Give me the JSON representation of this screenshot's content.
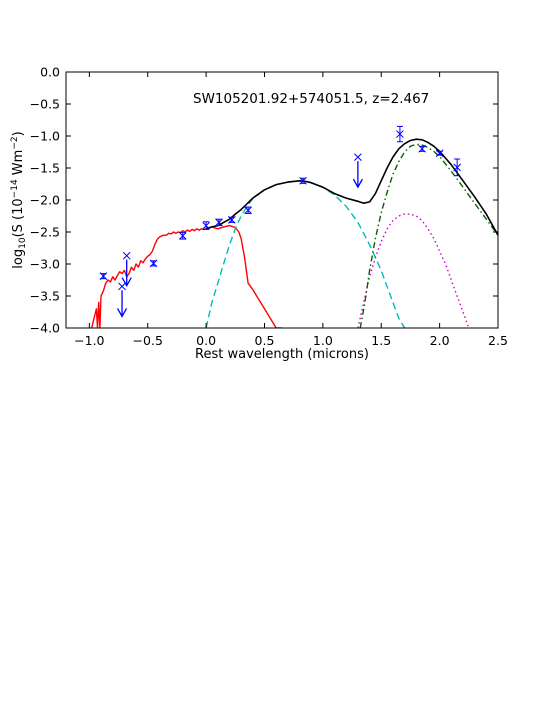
{
  "chart_data": {
    "type": "line",
    "annotation": "SW105201.92+574051.5, z=2.467",
    "xlabel": "Rest wavelength (microns)",
    "ylabel_parts": {
      "pre": "log",
      "sub": "10",
      "mid": "(S (10",
      "sup1": "−14",
      "mid2": " Wm",
      "sup2": "−2",
      "post": ")"
    },
    "xlim": [
      -1.2,
      2.5
    ],
    "ylim": [
      -4.0,
      0.0
    ],
    "x_ticks": [
      "−1.0",
      "−0.5",
      "0.0",
      "0.5",
      "1.0",
      "1.5",
      "2.0",
      "2.5"
    ],
    "x_tick_values": [
      -1.0,
      -0.5,
      0.0,
      0.5,
      1.0,
      1.5,
      2.0,
      2.5
    ],
    "y_ticks": [
      "0.0",
      "−0.5",
      "−1.0",
      "−1.5",
      "−2.0",
      "−2.5",
      "−3.0",
      "−3.5",
      "−4.0"
    ],
    "y_tick_values": [
      0.0,
      -0.5,
      -1.0,
      -1.5,
      -2.0,
      -2.5,
      -3.0,
      -3.5,
      -4.0
    ],
    "colors": {
      "stellar": "#ff0000",
      "cirrus": "#00bbbb",
      "starburst": "#cc00cc",
      "agn_dust": "#006400",
      "total": "#000000",
      "points": "#0000ff"
    },
    "series": [
      {
        "key": "stellar",
        "style": "solid",
        "x": [
          -0.98,
          -0.96,
          -0.94,
          -0.93,
          -0.92,
          -0.91,
          -0.9,
          -0.88,
          -0.86,
          -0.84,
          -0.82,
          -0.8,
          -0.78,
          -0.76,
          -0.74,
          -0.72,
          -0.7,
          -0.68,
          -0.66,
          -0.64,
          -0.62,
          -0.6,
          -0.58,
          -0.56,
          -0.54,
          -0.52,
          -0.5,
          -0.48,
          -0.46,
          -0.44,
          -0.42,
          -0.4,
          -0.38,
          -0.36,
          -0.34,
          -0.32,
          -0.3,
          -0.28,
          -0.26,
          -0.24,
          -0.22,
          -0.2,
          -0.18,
          -0.16,
          -0.14,
          -0.12,
          -0.1,
          -0.08,
          -0.06,
          -0.04,
          -0.02,
          0.0,
          0.05,
          0.1,
          0.15,
          0.2,
          0.25,
          0.28,
          0.3,
          0.33,
          0.36,
          0.4,
          0.45,
          0.5,
          0.55,
          0.6,
          0.65
        ],
        "y": [
          -4.0,
          -3.85,
          -3.7,
          -4.0,
          -3.6,
          -4.0,
          -3.5,
          -3.42,
          -3.3,
          -3.25,
          -3.28,
          -3.2,
          -3.25,
          -3.18,
          -3.12,
          -3.15,
          -3.1,
          -3.2,
          -3.15,
          -3.05,
          -3.1,
          -3.0,
          -3.05,
          -2.95,
          -2.98,
          -2.92,
          -2.88,
          -2.85,
          -2.8,
          -2.7,
          -2.62,
          -2.58,
          -2.56,
          -2.55,
          -2.55,
          -2.52,
          -2.53,
          -2.5,
          -2.52,
          -2.5,
          -2.51,
          -2.48,
          -2.5,
          -2.47,
          -2.49,
          -2.46,
          -2.48,
          -2.45,
          -2.47,
          -2.45,
          -2.46,
          -2.45,
          -2.42,
          -2.45,
          -2.42,
          -2.4,
          -2.43,
          -2.5,
          -2.6,
          -2.9,
          -3.3,
          -3.4,
          -3.55,
          -3.7,
          -3.85,
          -4.0,
          -4.0
        ]
      },
      {
        "key": "cirrus",
        "style": "dashed",
        "x": [
          0.0,
          0.05,
          0.1,
          0.15,
          0.2,
          0.25,
          0.3,
          0.35,
          0.4,
          0.5,
          0.6,
          0.7,
          0.8,
          0.85,
          0.9,
          1.0,
          1.1,
          1.2,
          1.3,
          1.4,
          1.5,
          1.6,
          1.65,
          1.7
        ],
        "y": [
          -4.0,
          -3.6,
          -3.3,
          -3.0,
          -2.7,
          -2.45,
          -2.25,
          -2.1,
          -1.98,
          -1.84,
          -1.76,
          -1.72,
          -1.7,
          -1.71,
          -1.73,
          -1.8,
          -1.92,
          -2.1,
          -2.35,
          -2.7,
          -3.1,
          -3.6,
          -3.85,
          -4.0
        ]
      },
      {
        "key": "starburst",
        "style": "dotted",
        "x": [
          1.3,
          1.35,
          1.4,
          1.45,
          1.5,
          1.55,
          1.6,
          1.65,
          1.7,
          1.75,
          1.8,
          1.85,
          1.9,
          1.95,
          2.0,
          2.05,
          2.1,
          2.15,
          2.2,
          2.25
        ],
        "y": [
          -4.0,
          -3.6,
          -3.2,
          -2.9,
          -2.65,
          -2.45,
          -2.32,
          -2.25,
          -2.22,
          -2.22,
          -2.25,
          -2.32,
          -2.45,
          -2.6,
          -2.8,
          -3.0,
          -3.25,
          -3.5,
          -3.75,
          -4.0
        ]
      },
      {
        "key": "agn_dust",
        "style": "dashdot",
        "x": [
          1.32,
          1.36,
          1.4,
          1.45,
          1.5,
          1.55,
          1.6,
          1.65,
          1.7,
          1.75,
          1.8,
          1.85,
          1.9,
          1.95,
          2.0,
          2.1,
          2.2,
          2.3,
          2.4,
          2.5
        ],
        "y": [
          -4.0,
          -3.6,
          -3.1,
          -2.6,
          -2.2,
          -1.88,
          -1.6,
          -1.4,
          -1.25,
          -1.16,
          -1.13,
          -1.14,
          -1.18,
          -1.24,
          -1.32,
          -1.55,
          -1.8,
          -2.05,
          -2.3,
          -2.55
        ]
      },
      {
        "key": "total",
        "style": "solid",
        "x": [
          0.0,
          0.05,
          0.1,
          0.15,
          0.2,
          0.25,
          0.3,
          0.35,
          0.4,
          0.5,
          0.6,
          0.7,
          0.8,
          0.85,
          0.9,
          1.0,
          1.1,
          1.2,
          1.3,
          1.35,
          1.4,
          1.45,
          1.5,
          1.55,
          1.6,
          1.65,
          1.7,
          1.75,
          1.8,
          1.85,
          1.9,
          1.95,
          2.0,
          2.1,
          2.2,
          2.3,
          2.4,
          2.5
        ],
        "y": [
          -2.45,
          -2.42,
          -2.4,
          -2.35,
          -2.3,
          -2.22,
          -2.15,
          -2.06,
          -1.97,
          -1.84,
          -1.76,
          -1.72,
          -1.7,
          -1.71,
          -1.73,
          -1.8,
          -1.9,
          -1.97,
          -2.02,
          -2.05,
          -2.03,
          -1.9,
          -1.7,
          -1.5,
          -1.33,
          -1.2,
          -1.12,
          -1.07,
          -1.05,
          -1.06,
          -1.1,
          -1.16,
          -1.24,
          -1.45,
          -1.7,
          -1.95,
          -2.22,
          -2.55
        ]
      }
    ],
    "points": [
      {
        "x": -0.88,
        "y": -3.19,
        "err": 0.04
      },
      {
        "x": -0.72,
        "y": -3.35,
        "upper_limit": true
      },
      {
        "x": -0.68,
        "y": -2.87,
        "upper_limit": true
      },
      {
        "x": -0.45,
        "y": -2.99,
        "err": 0.04
      },
      {
        "x": -0.2,
        "y": -2.56,
        "err": 0.05
      },
      {
        "x": 0.0,
        "y": -2.4,
        "err": 0.06
      },
      {
        "x": 0.11,
        "y": -2.35,
        "err": 0.05
      },
      {
        "x": 0.22,
        "y": -2.31,
        "err": 0.04
      },
      {
        "x": 0.36,
        "y": -2.16,
        "err": 0.05
      },
      {
        "x": 0.83,
        "y": -1.7,
        "err": 0.04
      },
      {
        "x": 1.3,
        "y": -1.33,
        "upper_limit": true
      },
      {
        "x": 1.66,
        "y": -0.97,
        "err": 0.12
      },
      {
        "x": 1.85,
        "y": -1.2,
        "err": 0.04
      },
      {
        "x": 2.0,
        "y": -1.27,
        "err": 0.03
      },
      {
        "x": 2.15,
        "y": -1.49,
        "err": 0.13
      }
    ]
  }
}
